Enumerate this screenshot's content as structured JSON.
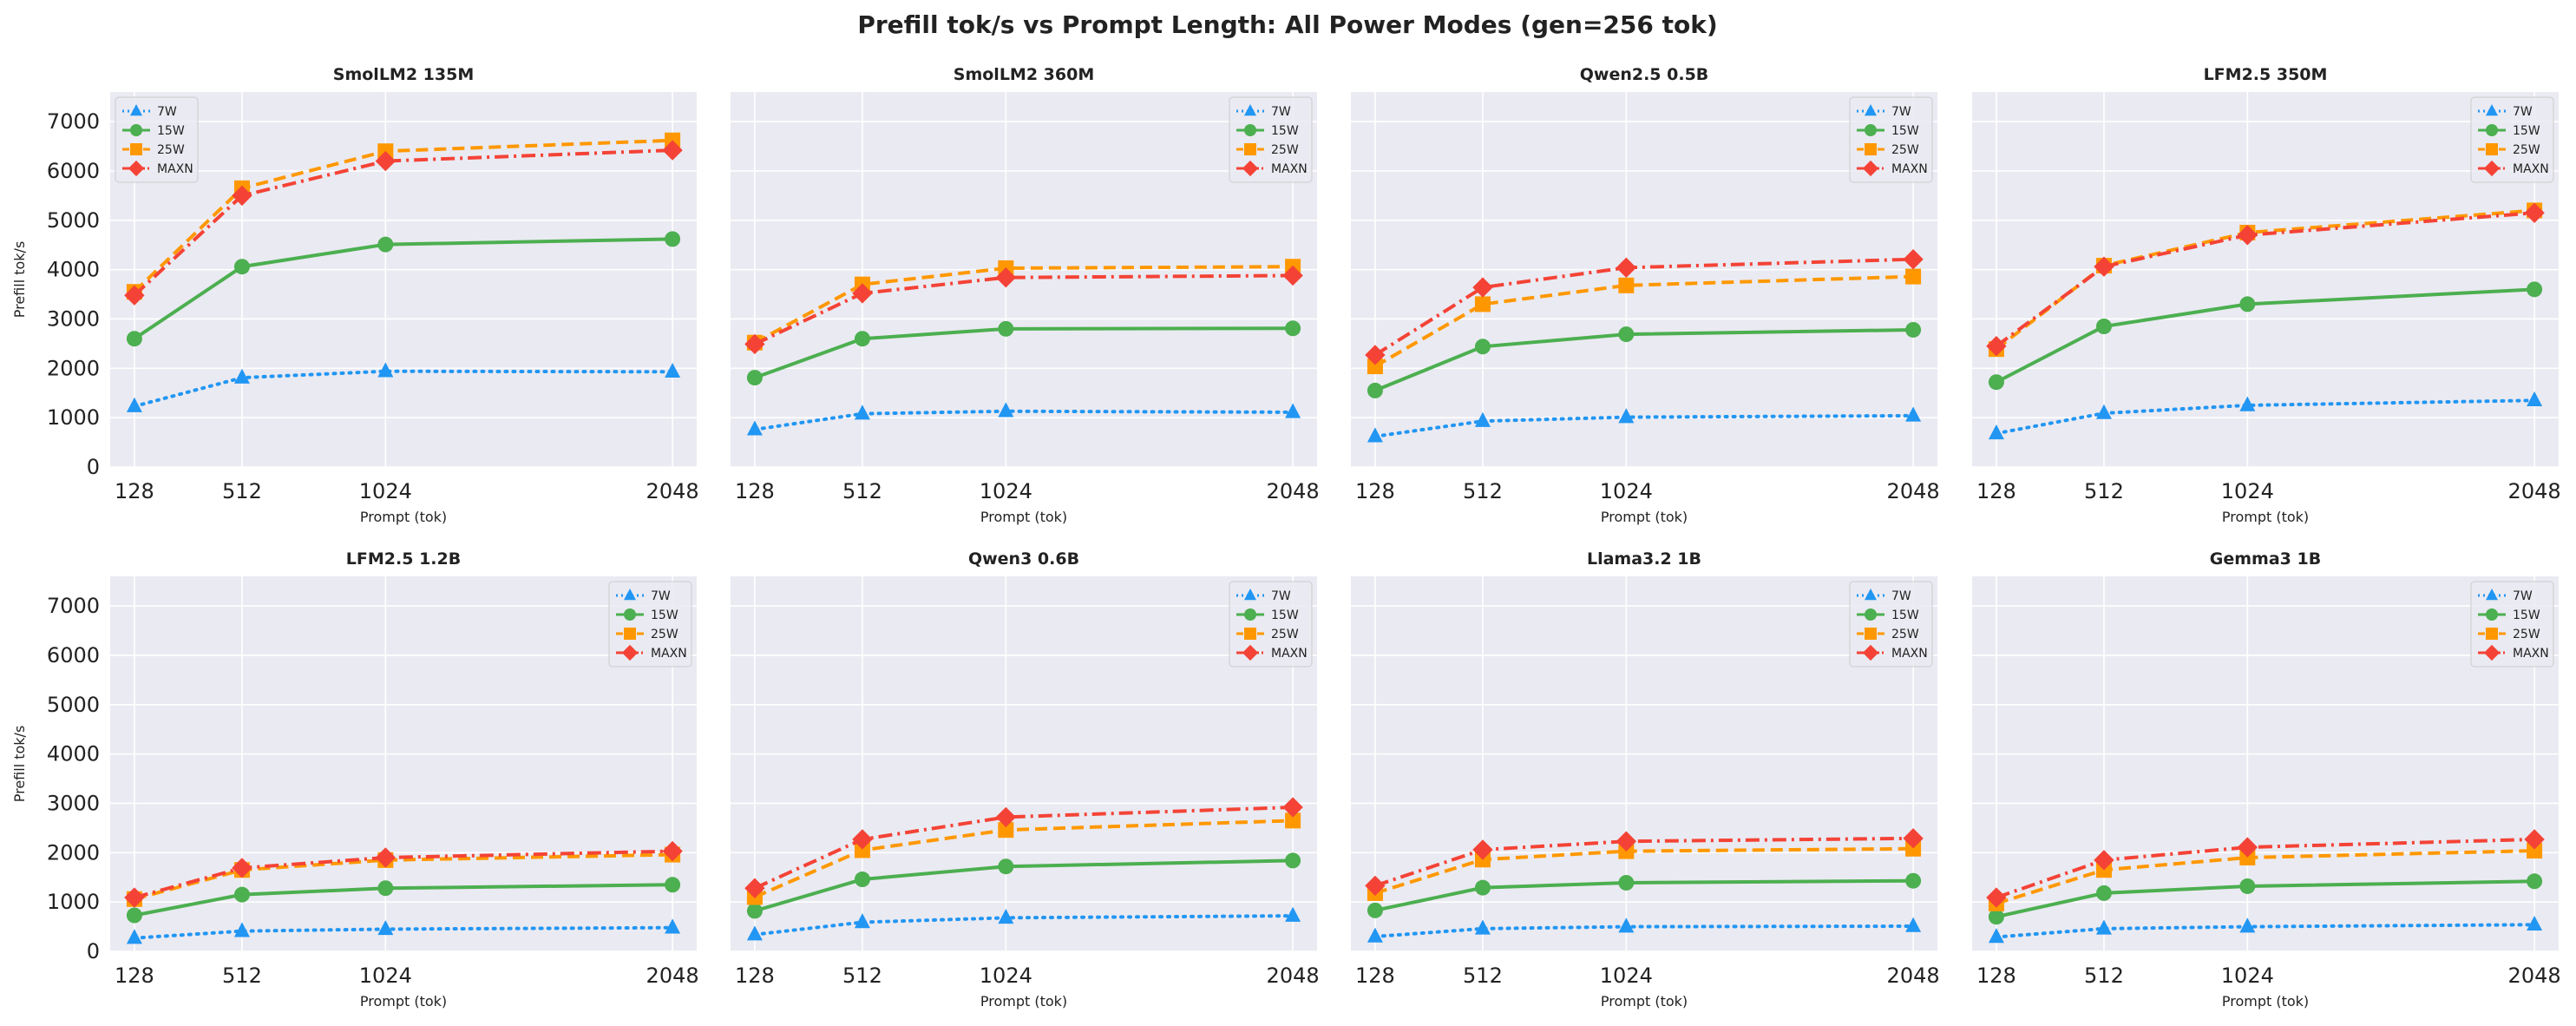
{
  "figure": {
    "title": "Prefill tok/s vs Prompt Length: All Power Modes (gen=256 tok)"
  },
  "style": {
    "panel_bg": "#eaeaf2",
    "grid_color": "#ffffff",
    "series_colors": {
      "7W": "#2196f3",
      "15W": "#4caf50",
      "25W": "#ff9800",
      "MAXN": "#f44336"
    },
    "series_markers": {
      "7W": "triangle",
      "15W": "circle",
      "25W": "square",
      "MAXN": "diamond"
    },
    "series_dash": {
      "7W": "dotted",
      "15W": "solid",
      "25W": "dashed",
      "MAXN": "dashdot"
    }
  },
  "chart_data": [
    {
      "type": "line",
      "title": "SmolLM2 135M",
      "xlabel": "Prompt (tok)",
      "ylabel": "Prefill tok/s",
      "x": [
        128,
        512,
        1024,
        2048
      ],
      "xticks": [
        "128",
        "512",
        "1024",
        "2048"
      ],
      "yticks": [
        "0",
        "1000",
        "2000",
        "3000",
        "4000",
        "5000",
        "6000",
        "7000"
      ],
      "ylim": [
        0,
        7600
      ],
      "legend": "upper-left",
      "series": [
        {
          "name": "7W",
          "values": [
            1230,
            1810,
            1940,
            1930
          ]
        },
        {
          "name": "15W",
          "values": [
            2600,
            4060,
            4510,
            4620
          ]
        },
        {
          "name": "25W",
          "values": [
            3550,
            5650,
            6400,
            6620
          ]
        },
        {
          "name": "MAXN",
          "values": [
            3480,
            5500,
            6200,
            6420
          ]
        }
      ]
    },
    {
      "type": "line",
      "title": "SmolLM2 360M",
      "xlabel": "Prompt (tok)",
      "ylabel": "",
      "x": [
        128,
        512,
        1024,
        2048
      ],
      "xticks": [
        "128",
        "512",
        "1024",
        "2048"
      ],
      "yticks": [],
      "ylim": [
        0,
        7600
      ],
      "legend": "upper-right",
      "series": [
        {
          "name": "7W",
          "values": [
            760,
            1080,
            1130,
            1110
          ]
        },
        {
          "name": "15W",
          "values": [
            1810,
            2600,
            2800,
            2810
          ]
        },
        {
          "name": "25W",
          "values": [
            2520,
            3700,
            4030,
            4060
          ]
        },
        {
          "name": "MAXN",
          "values": [
            2490,
            3520,
            3840,
            3880
          ]
        }
      ]
    },
    {
      "type": "line",
      "title": "Qwen2.5 0.5B",
      "xlabel": "Prompt (tok)",
      "ylabel": "",
      "x": [
        128,
        512,
        1024,
        2048
      ],
      "xticks": [
        "128",
        "512",
        "1024",
        "2048"
      ],
      "yticks": [],
      "ylim": [
        0,
        7600
      ],
      "legend": "upper-right",
      "series": [
        {
          "name": "7W",
          "values": [
            620,
            930,
            1010,
            1040
          ]
        },
        {
          "name": "15W",
          "values": [
            1550,
            2440,
            2690,
            2780
          ]
        },
        {
          "name": "25W",
          "values": [
            2040,
            3300,
            3680,
            3860
          ]
        },
        {
          "name": "MAXN",
          "values": [
            2270,
            3640,
            4040,
            4210
          ]
        }
      ]
    },
    {
      "type": "line",
      "title": "LFM2.5 350M",
      "xlabel": "Prompt (tok)",
      "ylabel": "",
      "x": [
        128,
        512,
        1024,
        2048
      ],
      "xticks": [
        "128",
        "512",
        "1024",
        "2048"
      ],
      "yticks": [],
      "ylim": [
        0,
        7600
      ],
      "legend": "upper-right",
      "series": [
        {
          "name": "7W",
          "values": [
            680,
            1090,
            1250,
            1350
          ]
        },
        {
          "name": "15W",
          "values": [
            1720,
            2850,
            3300,
            3600
          ]
        },
        {
          "name": "25W",
          "values": [
            2390,
            4080,
            4750,
            5200
          ]
        },
        {
          "name": "MAXN",
          "values": [
            2450,
            4060,
            4700,
            5150
          ]
        }
      ]
    },
    {
      "type": "line",
      "title": "LFM2.5 1.2B",
      "xlabel": "Prompt (tok)",
      "ylabel": "Prefill tok/s",
      "x": [
        128,
        512,
        1024,
        2048
      ],
      "xticks": [
        "128",
        "512",
        "1024",
        "2048"
      ],
      "yticks": [
        "0",
        "1000",
        "2000",
        "3000",
        "4000",
        "5000",
        "6000",
        "7000"
      ],
      "ylim": [
        0,
        7600
      ],
      "legend": "upper-right",
      "series": [
        {
          "name": "7W",
          "values": [
            270,
            410,
            450,
            480
          ]
        },
        {
          "name": "15W",
          "values": [
            730,
            1150,
            1280,
            1350
          ]
        },
        {
          "name": "25W",
          "values": [
            1060,
            1650,
            1850,
            1960
          ]
        },
        {
          "name": "MAXN",
          "values": [
            1090,
            1690,
            1900,
            2030
          ]
        }
      ]
    },
    {
      "type": "line",
      "title": "Qwen3 0.6B",
      "xlabel": "Prompt (tok)",
      "ylabel": "",
      "x": [
        128,
        512,
        1024,
        2048
      ],
      "xticks": [
        "128",
        "512",
        "1024",
        "2048"
      ],
      "yticks": [],
      "ylim": [
        0,
        7600
      ],
      "legend": "upper-right",
      "series": [
        {
          "name": "7W",
          "values": [
            340,
            590,
            680,
            720
          ]
        },
        {
          "name": "15W",
          "values": [
            820,
            1460,
            1720,
            1840
          ]
        },
        {
          "name": "25W",
          "values": [
            1100,
            2050,
            2460,
            2650
          ]
        },
        {
          "name": "MAXN",
          "values": [
            1280,
            2270,
            2720,
            2920
          ]
        }
      ]
    },
    {
      "type": "line",
      "title": "Llama3.2 1B",
      "xlabel": "Prompt (tok)",
      "ylabel": "",
      "x": [
        128,
        512,
        1024,
        2048
      ],
      "xticks": [
        "128",
        "512",
        "1024",
        "2048"
      ],
      "yticks": [],
      "ylim": [
        0,
        7600
      ],
      "legend": "upper-right",
      "series": [
        {
          "name": "7W",
          "values": [
            300,
            460,
            500,
            510
          ]
        },
        {
          "name": "15W",
          "values": [
            830,
            1290,
            1390,
            1430
          ]
        },
        {
          "name": "25W",
          "values": [
            1180,
            1860,
            2030,
            2080
          ]
        },
        {
          "name": "MAXN",
          "values": [
            1330,
            2060,
            2230,
            2290
          ]
        }
      ]
    },
    {
      "type": "line",
      "title": "Gemma3 1B",
      "xlabel": "Prompt (tok)",
      "ylabel": "",
      "x": [
        128,
        512,
        1024,
        2048
      ],
      "xticks": [
        "128",
        "512",
        "1024",
        "2048"
      ],
      "yticks": [],
      "ylim": [
        0,
        7600
      ],
      "legend": "upper-right",
      "series": [
        {
          "name": "7W",
          "values": [
            290,
            460,
            500,
            540
          ]
        },
        {
          "name": "15W",
          "values": [
            700,
            1180,
            1320,
            1420
          ]
        },
        {
          "name": "25W",
          "values": [
            970,
            1650,
            1900,
            2040
          ]
        },
        {
          "name": "MAXN",
          "values": [
            1090,
            1850,
            2110,
            2270
          ]
        }
      ]
    }
  ]
}
